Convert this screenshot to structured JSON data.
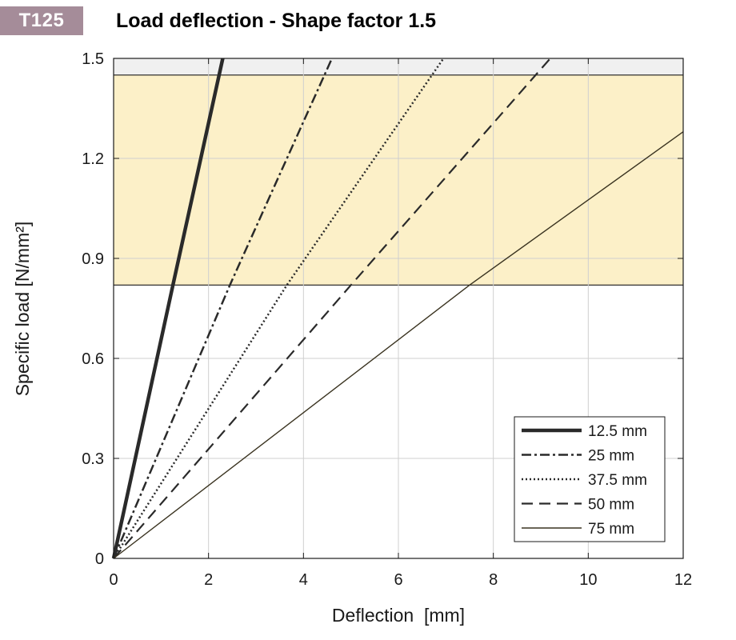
{
  "badge": "T125",
  "title": "Load deflection - Shape factor 1.5",
  "chart_data": {
    "type": "line",
    "xlabel": "Deflection  [mm]",
    "ylabel": "Specific load [N/mm²]",
    "xlim": [
      0,
      12
    ],
    "ylim": [
      0,
      1.5
    ],
    "xticks": [
      0,
      2,
      4,
      6,
      8,
      10,
      12
    ],
    "yticks": [
      0,
      0.3,
      0.6,
      0.9,
      1.2,
      1.5
    ],
    "ytick_labels": [
      "0",
      "0.3",
      "0.6",
      "0.9",
      "1.2",
      "1.5"
    ],
    "grid": true,
    "legend_position": "bottom-right",
    "bands": [
      {
        "y_from": 0.82,
        "y_to": 1.45,
        "color": "#fcf0c8"
      },
      {
        "y_from": 1.45,
        "y_to": 1.5,
        "color": "#f0f0f0"
      }
    ],
    "series": [
      {
        "name": "12.5 mm",
        "style": "solid-thick",
        "x": [
          0,
          1.25,
          2.3
        ],
        "y": [
          0,
          0.82,
          1.5
        ]
      },
      {
        "name": "25 mm",
        "style": "dashdot",
        "x": [
          0,
          2.45,
          4.6
        ],
        "y": [
          0,
          0.82,
          1.5
        ]
      },
      {
        "name": "37.5 mm",
        "style": "dotted",
        "x": [
          0,
          3.65,
          6.95
        ],
        "y": [
          0,
          0.82,
          1.5
        ]
      },
      {
        "name": "50 mm",
        "style": "dashed",
        "x": [
          0,
          5.0,
          9.2
        ],
        "y": [
          0,
          0.82,
          1.5
        ]
      },
      {
        "name": "75 mm",
        "style": "solid-thin",
        "x": [
          0,
          7.5,
          12
        ],
        "y": [
          0,
          0.82,
          1.28
        ]
      }
    ]
  }
}
